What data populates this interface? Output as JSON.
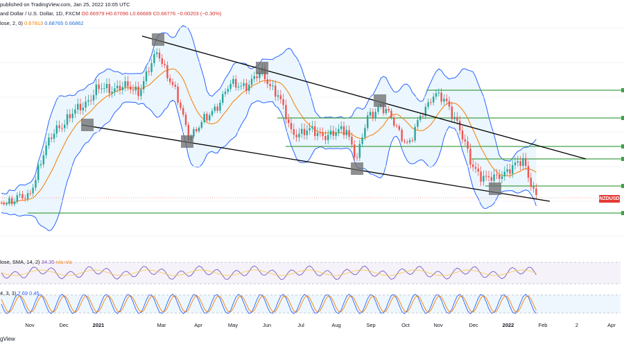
{
  "header": {
    "published": "published on TradingView.com, Jan 25, 2022 10:05 UTC",
    "symbol_line": "and Dollar / U.S. Dollar, 1D, FXCM",
    "ohlc": {
      "open": "O0.66979",
      "high": "H0.67096",
      "low": "L0.66689",
      "close": "C0.66776",
      "change": "−0.00203 (−0.30%)"
    },
    "bb_line": "lose, 2, 0)",
    "bb_values": [
      "0.67813",
      "0.68765",
      "0.66862"
    ]
  },
  "indicators": {
    "rsi_label": "lose, SMA, 14, 2)",
    "rsi_values": "34.35",
    "rsi_na": "n/a n/a",
    "stoch_label": "4, 3, 3)",
    "stoch_values": "7.69 0.45"
  },
  "price_tag": "NZDUSD",
  "watermark": "gView",
  "colors": {
    "up_candle": "#26a69a",
    "down_candle": "#ef5350",
    "sma": "#f57c00",
    "bollinger": "#2962ff",
    "bollinger_fill": "#2196f3",
    "trendline": "#000000",
    "horizontal_level": "#43a047",
    "rsi": "#7e57c2",
    "stoch_k": "#2962ff",
    "stoch_d": "#f57c00",
    "price_tag": "#e53935"
  },
  "chart_data": {
    "type": "candlestick",
    "symbol": "NZDUSD",
    "timeframe": "1D",
    "x_tick_labels": [
      "Nov",
      "Dec",
      "2021",
      "Mar",
      "Apr",
      "May",
      "Jun",
      "Jul",
      "Aug",
      "Sep",
      "Oct",
      "Nov",
      "Dec",
      "2022",
      "Feb",
      "2",
      "Apr"
    ],
    "bold_ticks": [
      "2021",
      "2022"
    ],
    "last_close": 0.66776,
    "horizontal_levels_count": 6,
    "trendlines": [
      "upper descending resistance",
      "lower descending support"
    ],
    "pivot_markers_count": 9,
    "subpanes": [
      "RSI with SMA",
      "Stochastic"
    ]
  }
}
